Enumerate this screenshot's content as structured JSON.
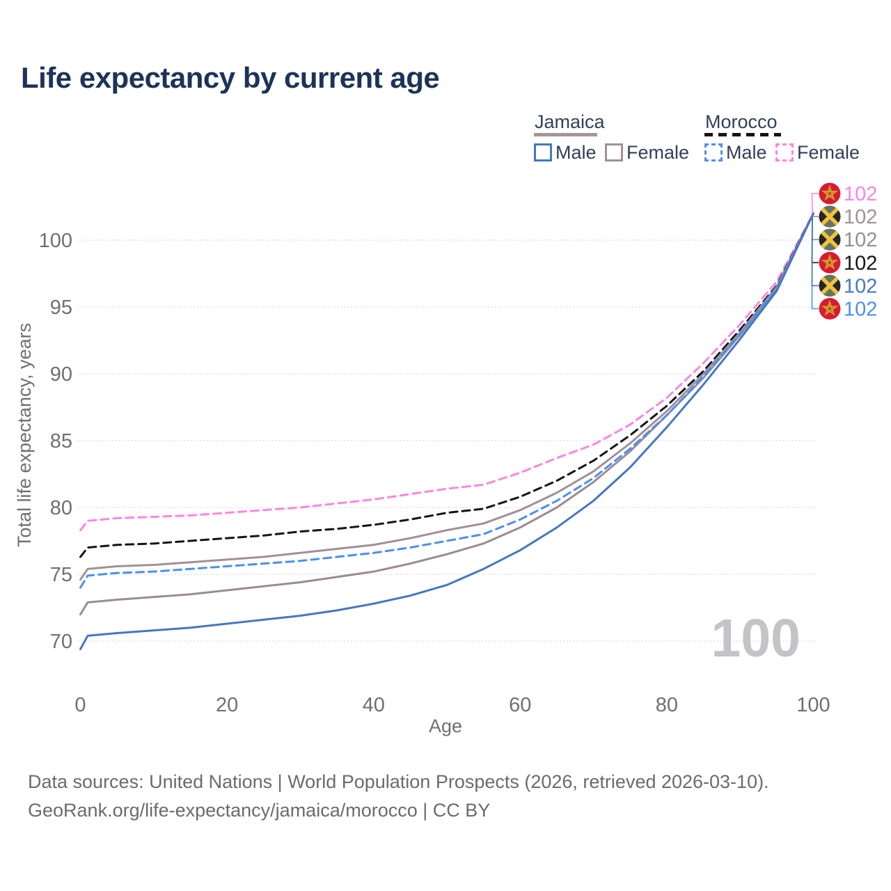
{
  "title": "Life expectancy by current age",
  "legend": {
    "jamaica": {
      "label": "Jamaica",
      "male": "Male",
      "female": "Female",
      "underline_color": "#a3959c",
      "underline_style": "solid"
    },
    "morocco": {
      "label": "Morocco",
      "male": "Male",
      "female": "Female",
      "underline_color": "#141414",
      "underline_style": "dashed"
    }
  },
  "chart_data": {
    "type": "line",
    "title": "Life expectancy by current age",
    "xlabel": "Age",
    "ylabel": "Total life expectancy, years",
    "x_ticks": [
      0,
      20,
      40,
      60,
      80,
      100
    ],
    "y_ticks": [
      70,
      75,
      80,
      85,
      90,
      95,
      100
    ],
    "xlim": [
      0,
      100
    ],
    "ylim": [
      68,
      103
    ],
    "grid": "horizontal-dotted",
    "legend_position": "top-right",
    "watermark": "100",
    "ages": [
      0,
      1,
      5,
      10,
      15,
      20,
      25,
      30,
      35,
      40,
      45,
      50,
      55,
      60,
      65,
      70,
      75,
      80,
      85,
      90,
      95,
      100
    ],
    "series": [
      {
        "name": "Morocco Female",
        "country": "morocco",
        "sex": "Female",
        "color": "#fb86e1",
        "dashed": true,
        "end_value": "102",
        "values": [
          78.3,
          79.0,
          79.2,
          79.3,
          79.4,
          79.6,
          79.8,
          80.0,
          80.3,
          80.6,
          81.0,
          81.4,
          81.7,
          82.6,
          83.7,
          84.7,
          86.2,
          88.2,
          90.8,
          93.7,
          96.9,
          102
        ]
      },
      {
        "name": "Jamaica Female",
        "country": "jamaica",
        "sex": "Female",
        "color": "#a28f98",
        "dashed": false,
        "end_value": "102",
        "values": [
          74.6,
          75.4,
          75.6,
          75.7,
          75.9,
          76.1,
          76.3,
          76.6,
          76.9,
          77.2,
          77.7,
          78.3,
          78.8,
          79.8,
          81.1,
          82.7,
          84.8,
          87.2,
          90.0,
          93.1,
          96.5,
          102
        ]
      },
      {
        "name": "Jamaica Both sexes",
        "country": "jamaica",
        "sex": "Both",
        "color": "#9b8b92",
        "dashed": false,
        "end_value": "102",
        "values": [
          72.0,
          72.9,
          73.1,
          73.3,
          73.5,
          73.8,
          74.1,
          74.4,
          74.8,
          75.2,
          75.8,
          76.5,
          77.3,
          78.5,
          80.0,
          81.9,
          84.2,
          86.9,
          89.7,
          92.9,
          96.3,
          102
        ]
      },
      {
        "name": "Morocco Both sexes",
        "country": "morocco",
        "sex": "Both",
        "color": "#141414",
        "dashed": true,
        "end_value": "102",
        "values": [
          76.3,
          77.0,
          77.2,
          77.3,
          77.5,
          77.7,
          77.9,
          78.2,
          78.4,
          78.7,
          79.1,
          79.6,
          79.9,
          80.8,
          82.0,
          83.5,
          85.4,
          87.6,
          90.2,
          93.3,
          96.6,
          102
        ]
      },
      {
        "name": "Jamaica Male",
        "country": "jamaica",
        "sex": "Male",
        "color": "#4577c2",
        "dashed": false,
        "end_value": "102",
        "values": [
          69.4,
          70.4,
          70.6,
          70.8,
          71.0,
          71.3,
          71.6,
          71.9,
          72.3,
          72.8,
          73.4,
          74.2,
          75.4,
          76.8,
          78.5,
          80.5,
          83.0,
          86.0,
          89.2,
          92.6,
          96.2,
          102
        ]
      },
      {
        "name": "Morocco Male",
        "country": "morocco",
        "sex": "Male",
        "color": "#4b8ff0",
        "dashed": true,
        "end_value": "102",
        "values": [
          74.0,
          74.9,
          75.1,
          75.2,
          75.4,
          75.6,
          75.8,
          76.0,
          76.3,
          76.6,
          77.0,
          77.5,
          78.0,
          79.1,
          80.5,
          82.2,
          84.4,
          86.9,
          89.8,
          93.0,
          96.4,
          102
        ]
      }
    ],
    "flags": {
      "jamaica": {
        "black": "#262626",
        "green": "#66755f",
        "gold": "#f0c23e"
      },
      "morocco": {
        "red": "#da1a32",
        "star": "#c9a227"
      }
    }
  },
  "footer": {
    "line1": "Data sources: United Nations | World Population Prospects (2026, retrieved 2026-03-10).",
    "line2": "GeoRank.org/life-expectancy/jamaica/morocco | CC BY"
  },
  "colors": {
    "title": "#1d3357",
    "axis_text": "#6f6f6f",
    "gridline": "#d9d9d9",
    "watermark": "#c3c3c8",
    "legend_text": "#333f58"
  }
}
